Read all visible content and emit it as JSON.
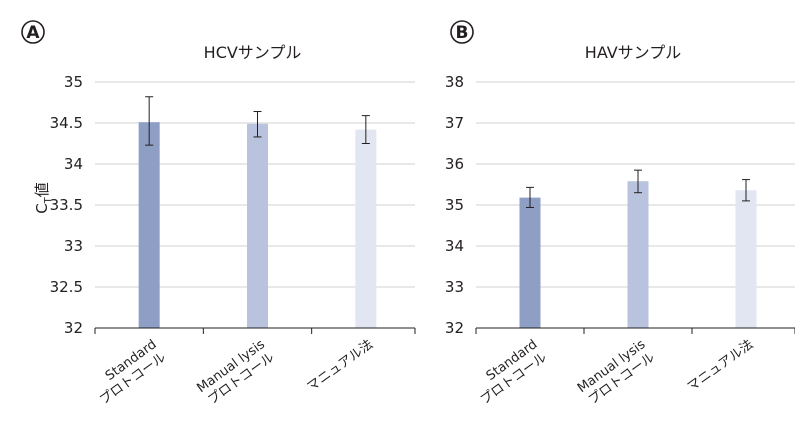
{
  "ylabel": {
    "main": "C",
    "sub": "T",
    "suffix": "値"
  },
  "chart_data": [
    {
      "type": "bar",
      "panel_label": "A",
      "title": "HCVサンプル",
      "categories": [
        [
          "Standard",
          "プロトコール"
        ],
        [
          "Manual lysis",
          "プロトコール"
        ],
        [
          "マニュアル法"
        ]
      ],
      "values": [
        34.51,
        34.49,
        34.42
      ],
      "error_low": [
        34.23,
        34.33,
        34.25
      ],
      "error_high": [
        34.82,
        34.64,
        34.59
      ],
      "colors": [
        "#8e9ec4",
        "#b9c3de",
        "#e2e6f2"
      ],
      "ylim": [
        32,
        35
      ],
      "yticks": [
        "32",
        "32.5",
        "33",
        "33.5",
        "34",
        "34.5",
        "35"
      ],
      "grid": true
    },
    {
      "type": "bar",
      "panel_label": "B",
      "title": "HAVサンプル",
      "categories": [
        [
          "Standard",
          "プロトコール"
        ],
        [
          "Manual lysis",
          "プロトコール"
        ],
        [
          "マニュアル法"
        ]
      ],
      "values": [
        35.18,
        35.58,
        35.36
      ],
      "error_low": [
        34.94,
        35.3,
        35.1
      ],
      "error_high": [
        35.43,
        35.85,
        35.62
      ],
      "colors": [
        "#8e9ec4",
        "#b9c3de",
        "#e2e6f2"
      ],
      "ylim": [
        32,
        38
      ],
      "yticks": [
        "32",
        "33",
        "34",
        "35",
        "36",
        "37",
        "38"
      ],
      "grid": true
    }
  ]
}
